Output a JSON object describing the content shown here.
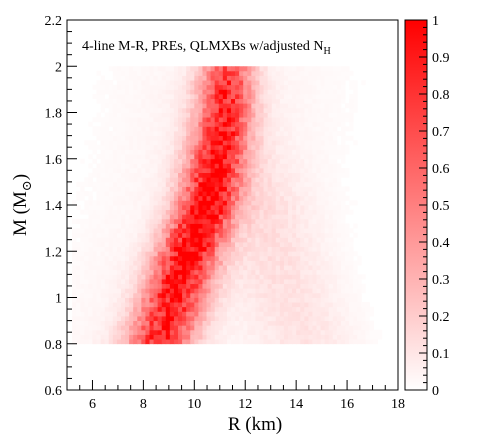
{
  "chart_data": {
    "type": "heatmap",
    "title": "4-line M-R, PREs, QLMXBs w/adjusted N",
    "title_subscript": "H",
    "xlabel": "R (km)",
    "ylabel_main": "M (M",
    "ylabel_sub": "⊙",
    "ylabel_close": ")",
    "xlim": [
      5,
      18
    ],
    "ylim": [
      0.6,
      2.2
    ],
    "x_ticks": [
      6,
      8,
      10,
      12,
      14,
      16,
      18
    ],
    "y_ticks": [
      0.6,
      0.8,
      1.0,
      1.2,
      1.4,
      1.6,
      1.8,
      2.0,
      2.2
    ],
    "x_tick_labels": [
      "6",
      "8",
      "10",
      "12",
      "14",
      "16",
      "18"
    ],
    "y_tick_labels": [
      "0.6",
      "0.8",
      "1",
      "1.2",
      "1.4",
      "1.6",
      "1.8",
      "2",
      "2.2"
    ],
    "colorbar": {
      "range": [
        0,
        1
      ],
      "ticks": [
        0,
        0.1,
        0.2,
        0.3,
        0.4,
        0.5,
        0.6,
        0.7,
        0.8,
        0.9,
        1
      ],
      "tick_labels": [
        "0",
        "0.1",
        "0.2",
        "0.3",
        "0.4",
        "0.5",
        "0.6",
        "0.7",
        "0.8",
        "0.9",
        "1"
      ],
      "color_low": "#ffffff",
      "color_high": "#ff0000"
    },
    "grid": false,
    "density_ridge": [
      {
        "mass": 0.8,
        "radius": 8.6
      },
      {
        "mass": 1.0,
        "radius": 9.2
      },
      {
        "mass": 1.2,
        "radius": 9.8
      },
      {
        "mass": 1.4,
        "radius": 10.5
      },
      {
        "mass": 1.6,
        "radius": 10.9
      },
      {
        "mass": 1.8,
        "radius": 11.2
      },
      {
        "mass": 2.0,
        "radius": 11.3
      }
    ],
    "peak_value": 1
  }
}
